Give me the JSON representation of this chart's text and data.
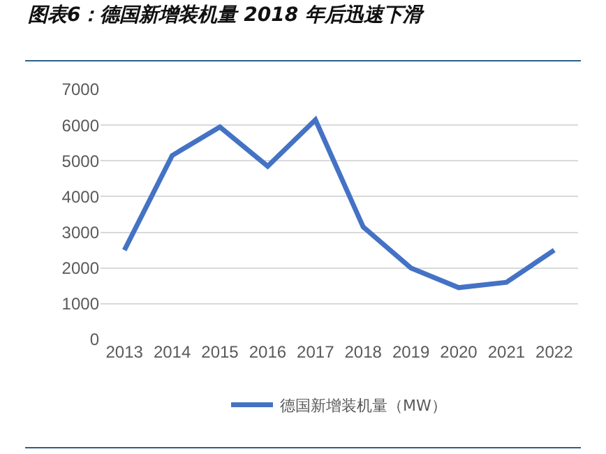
{
  "chart_data": {
    "type": "line",
    "title": "图表6：德国新增装机量 2018 年后迅速下滑",
    "categories": [
      "2013",
      "2014",
      "2015",
      "2016",
      "2017",
      "2018",
      "2019",
      "2020",
      "2021",
      "2022"
    ],
    "series": [
      {
        "name": "德国新增装机量（MW）",
        "color": "#4472c4",
        "values": [
          2500,
          5150,
          5950,
          4850,
          6150,
          3150,
          2000,
          1450,
          1600,
          2500
        ]
      }
    ],
    "ylim": [
      0,
      7000
    ],
    "yticks": [
      0,
      1000,
      2000,
      3000,
      4000,
      5000,
      6000,
      7000
    ],
    "grid": "y",
    "legend": "bottom",
    "marker": "none",
    "line_style": "solid"
  }
}
